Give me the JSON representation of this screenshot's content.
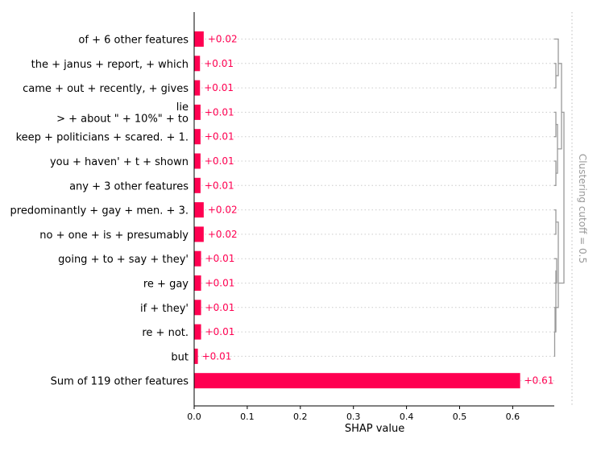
{
  "chart_data": {
    "type": "bar",
    "orientation": "horizontal",
    "categories": [
      [
        "of + 6 other features"
      ],
      [
        "the + janus + report, + which"
      ],
      [
        "came + out + recently, + gives"
      ],
      [
        "lie",
        "> + about \" + 10%\" + to"
      ],
      [
        "keep + politicians + scared. + 1."
      ],
      [
        "you + haven' + t + shown"
      ],
      [
        "any + 3 other features"
      ],
      [
        "predominantly + gay + men. + 3."
      ],
      [
        "no + one + is + presumably"
      ],
      [
        "going + to + say + they'"
      ],
      [
        "re + gay"
      ],
      [
        "if + they'"
      ],
      [
        "re + not."
      ],
      [
        "but"
      ],
      [
        "Sum of 119 other features"
      ]
    ],
    "values": [
      0.018,
      0.011,
      0.011,
      0.012,
      0.012,
      0.012,
      0.012,
      0.018,
      0.018,
      0.013,
      0.013,
      0.013,
      0.013,
      0.007,
      0.614
    ],
    "value_labels": [
      "+0.02",
      "+0.01",
      "+0.01",
      "+0.01",
      "+0.01",
      "+0.01",
      "+0.01",
      "+0.02",
      "+0.02",
      "+0.01",
      "+0.01",
      "+0.01",
      "+0.01",
      "+0.01",
      "+0.61"
    ],
    "xlabel": "SHAP value",
    "xlim": [
      0.0,
      0.68
    ],
    "xticks": [
      "0.0",
      "0.1",
      "0.2",
      "0.3",
      "0.4",
      "0.5",
      "0.6"
    ],
    "xtick_values": [
      0.0,
      0.1,
      0.2,
      0.3,
      0.4,
      0.5,
      0.6
    ],
    "clustering_label": "Clustering cutoff = 0.5",
    "colors": {
      "bar": "#ff0051",
      "label": "#ff0051",
      "grid": "#cccccc",
      "dendrogram": "#999999"
    },
    "grid": "dotted-horizontal"
  }
}
